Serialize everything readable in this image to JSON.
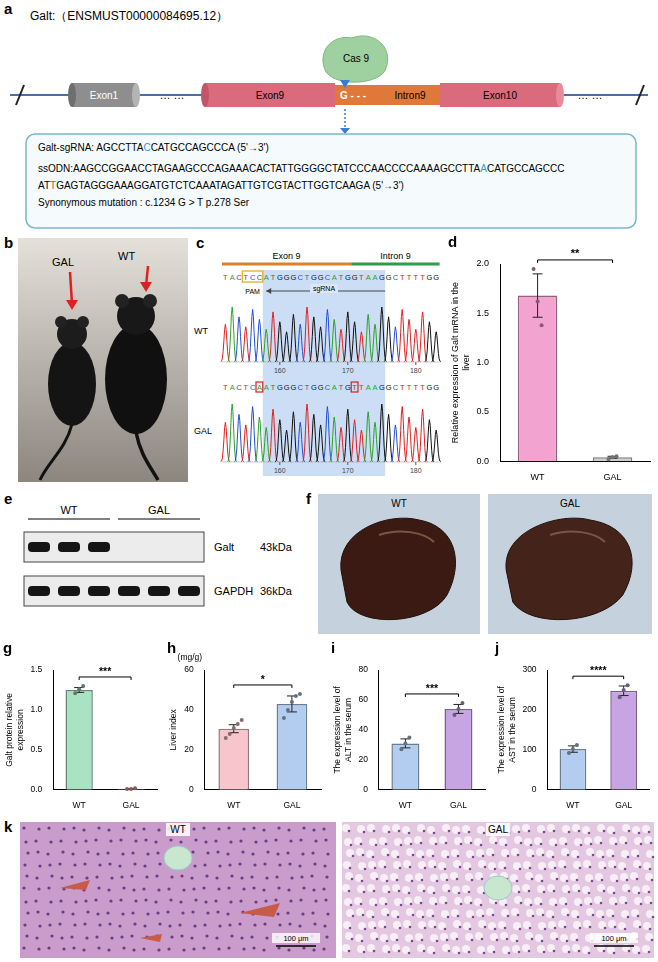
{
  "panels": {
    "a": {
      "letter": "a",
      "title": "Galt:（ENSMUST00000084695.12）",
      "exons": [
        "Exon1",
        "Exon9",
        "Exon10"
      ],
      "intron": "Intron9",
      "intron_mark": "G - - -",
      "ellipsis": "… …",
      "enzyme": "Cas 9",
      "lines": [
        [
          {
            "text": "Galt-sgRNA: AGCCTTA"
          },
          {
            "text": "C",
            "color": "#2e9bd6"
          },
          {
            "text": "CATGCCAGCCCA  (5'→3')"
          }
        ],
        [
          {
            "text": "ssODN:AAGCCGGAACCTAGAAGCCCAGAAACACTATTGGGGCTATCCCAACCCCAAAAGCCTTA"
          },
          {
            "text": "A",
            "color": "#2e9bd6"
          },
          {
            "text": "CATGCCAGCCC"
          }
        ],
        [
          {
            "text": "AT"
          },
          {
            "text": "T",
            "color": "#e03c31"
          },
          {
            "text": "GAGTAGGGAAAGGATGTCTCAAATAGATTGTCGTACTTGGTCAAGA (5'→3')"
          }
        ],
        [
          {
            "text": "Synonymous mutation : c.1234  G > T  p.278  Ser"
          }
        ]
      ]
    },
    "b": {
      "letter": "b",
      "labels": [
        "GAL",
        "WT"
      ]
    },
    "c": {
      "letter": "c",
      "regions": [
        "Exon 9",
        "Intron 9"
      ],
      "pam": "PAM",
      "guide": "sgRNA",
      "rows": [
        {
          "label": "WT",
          "sequence": "TACTCCATGGGCTGGCATGGTAAGGCTTTTGG"
        },
        {
          "label": "GAL",
          "sequence": "TACTCAATGGGCTGGCATGTTAAGGCTTTTGG"
        }
      ],
      "position_ticks": [
        160,
        170,
        180
      ]
    },
    "e": {
      "letter": "e",
      "groups": [
        "WT",
        "GAL"
      ],
      "rows": [
        {
          "protein": "Galt",
          "size": "43kDa",
          "bands": [
            true,
            true,
            true,
            false,
            false,
            false
          ]
        },
        {
          "protein": "GAPDH",
          "size": "36kDa",
          "bands": [
            true,
            true,
            true,
            true,
            true,
            true
          ]
        }
      ]
    },
    "f": {
      "letter": "f",
      "labels": [
        "WT",
        "GAL"
      ]
    },
    "k": {
      "letter": "k",
      "labels": [
        "WT",
        "GAL"
      ],
      "scale_bar": "100 μm"
    }
  },
  "chart_data": [
    {
      "panel_label": "d",
      "type": "bar",
      "y_label": "Relative expression of Galt mRNA in the liver",
      "categories": [
        "WT",
        "GAL"
      ],
      "values": [
        1.68,
        0.04
      ],
      "errors": [
        0.22,
        0.01
      ],
      "points": [
        [
          1.95,
          1.62,
          1.38
        ],
        [
          0.02,
          0.04,
          0.05
        ]
      ],
      "colors": [
        "#f2a3cf",
        "#cfcfcf"
      ],
      "ylim": [
        0,
        2
      ],
      "yticks": [
        {
          "value": 0,
          "label": "0.0"
        },
        {
          "value": 0.5,
          "label": "0.5"
        },
        {
          "value": 1,
          "label": "1.0"
        },
        {
          "value": 1.5,
          "label": "1.5"
        },
        {
          "value": 2,
          "label": "2.0"
        }
      ],
      "significance": "**",
      "grid": false
    },
    {
      "panel_label": "g",
      "type": "bar",
      "y_label": "Galt protein relative expression",
      "categories": [
        "WT",
        "GAL"
      ],
      "values": [
        1.25,
        0.01
      ],
      "errors": [
        0.03,
        0.005
      ],
      "points": [
        [
          1.21,
          1.26,
          1.3
        ],
        [
          0.01,
          0.01,
          0.02
        ]
      ],
      "colors": [
        "#a9e3c4",
        "#f4a3a3"
      ],
      "ylim": [
        0,
        1.5
      ],
      "yticks": [
        {
          "value": 0,
          "label": "0.0"
        },
        {
          "value": 0.5,
          "label": "0.5"
        },
        {
          "value": 1,
          "label": "1.0"
        },
        {
          "value": 1.5,
          "label": "1.5"
        }
      ],
      "significance": "***",
      "grid": false
    },
    {
      "panel_label": "h",
      "type": "bar",
      "y_label": "Liver index",
      "unit_label": "(mg/g)",
      "categories": [
        "WT",
        "GAL"
      ],
      "values": [
        30.6,
        43
      ],
      "errors": [
        2,
        4
      ],
      "points": [
        [
          26,
          28,
          31,
          33,
          35
        ],
        [
          36,
          40,
          44,
          47,
          48
        ]
      ],
      "colors": [
        "#f7c6cc",
        "#b3cdf0"
      ],
      "ylim": [
        0,
        60
      ],
      "yticks": [
        0,
        20,
        40,
        60
      ],
      "significance": "*",
      "grid": false
    },
    {
      "panel_label": "i",
      "type": "bar",
      "y_label": "The expression level of ALT in the serum",
      "categories": [
        "WT",
        "GAL"
      ],
      "values": [
        31,
        54
      ],
      "errors": [
        3,
        3
      ],
      "points": [
        [
          27,
          31,
          35
        ],
        [
          50,
          54,
          58
        ]
      ],
      "colors": [
        "#b3cdf0",
        "#c7a5e3"
      ],
      "ylim": [
        0,
        80
      ],
      "yticks": [
        0,
        20,
        40,
        60,
        80
      ],
      "significance": "***",
      "grid": false
    },
    {
      "panel_label": "j",
      "type": "bar",
      "y_label": "The expression level of AST in the serum",
      "categories": [
        "WT",
        "GAL"
      ],
      "values": [
        102,
        248
      ],
      "errors": [
        8,
        12
      ],
      "points": [
        [
          92,
          102,
          112
        ],
        [
          232,
          250,
          262
        ]
      ],
      "colors": [
        "#b3cdf0",
        "#c7a5e3"
      ],
      "ylim": [
        0,
        300
      ],
      "yticks": [
        0,
        100,
        200,
        300
      ],
      "significance": "****",
      "grid": false
    }
  ]
}
